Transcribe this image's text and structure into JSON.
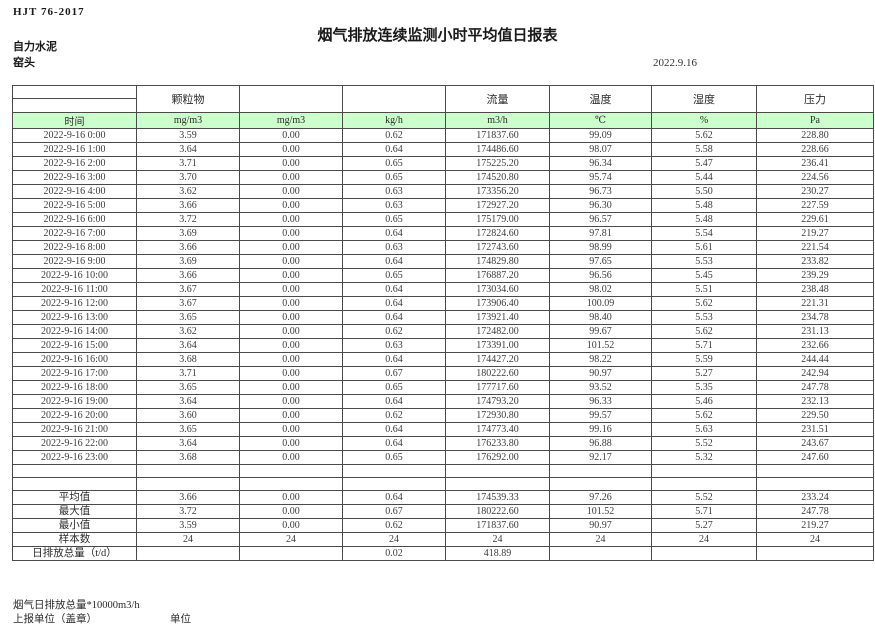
{
  "page": {
    "standard": "HJT  76-2017",
    "title": "烟气排放连续监测小时平均值日报表",
    "company": "自力水泥",
    "location": "窑头",
    "date": "2022.9.16"
  },
  "colors": {
    "unit_row_green": "#ccffcc",
    "border": "#4a4a4a"
  },
  "table": {
    "group_headers": [
      "",
      "颗粒物",
      "",
      "",
      "流量",
      "温度",
      "湿度",
      "压力"
    ],
    "unit_row": [
      "时间",
      "mg/m3",
      "mg/m3",
      "kg/h",
      "m3/h",
      "℃",
      "%",
      "Pa"
    ],
    "rows": [
      [
        "2022-9-16 0:00",
        "3.59",
        "0.00",
        "0.62",
        "171837.60",
        "99.09",
        "5.62",
        "228.80"
      ],
      [
        "2022-9-16 1:00",
        "3.64",
        "0.00",
        "0.64",
        "174486.60",
        "98.07",
        "5.58",
        "228.66"
      ],
      [
        "2022-9-16 2:00",
        "3.71",
        "0.00",
        "0.65",
        "175225.20",
        "96.34",
        "5.47",
        "236.41"
      ],
      [
        "2022-9-16 3:00",
        "3.70",
        "0.00",
        "0.65",
        "174520.80",
        "95.74",
        "5.44",
        "224.56"
      ],
      [
        "2022-9-16 4:00",
        "3.62",
        "0.00",
        "0.63",
        "173356.20",
        "96.73",
        "5.50",
        "230.27"
      ],
      [
        "2022-9-16 5:00",
        "3.66",
        "0.00",
        "0.63",
        "172927.20",
        "96.30",
        "5.48",
        "227.59"
      ],
      [
        "2022-9-16 6:00",
        "3.72",
        "0.00",
        "0.65",
        "175179.00",
        "96.57",
        "5.48",
        "229.61"
      ],
      [
        "2022-9-16 7:00",
        "3.69",
        "0.00",
        "0.64",
        "172824.60",
        "97.81",
        "5.54",
        "219.27"
      ],
      [
        "2022-9-16 8:00",
        "3.66",
        "0.00",
        "0.63",
        "172743.60",
        "98.99",
        "5.61",
        "221.54"
      ],
      [
        "2022-9-16 9:00",
        "3.69",
        "0.00",
        "0.64",
        "174829.80",
        "97.65",
        "5.53",
        "233.82"
      ],
      [
        "2022-9-16 10:00",
        "3.66",
        "0.00",
        "0.65",
        "176887.20",
        "96.56",
        "5.45",
        "239.29"
      ],
      [
        "2022-9-16 11:00",
        "3.67",
        "0.00",
        "0.64",
        "173034.60",
        "98.02",
        "5.51",
        "238.48"
      ],
      [
        "2022-9-16 12:00",
        "3.67",
        "0.00",
        "0.64",
        "173906.40",
        "100.09",
        "5.62",
        "221.31"
      ],
      [
        "2022-9-16 13:00",
        "3.65",
        "0.00",
        "0.64",
        "173921.40",
        "98.40",
        "5.53",
        "234.78"
      ],
      [
        "2022-9-16 14:00",
        "3.62",
        "0.00",
        "0.62",
        "172482.00",
        "99.67",
        "5.62",
        "231.13"
      ],
      [
        "2022-9-16 15:00",
        "3.64",
        "0.00",
        "0.63",
        "173391.00",
        "101.52",
        "5.71",
        "232.66"
      ],
      [
        "2022-9-16 16:00",
        "3.68",
        "0.00",
        "0.64",
        "174427.20",
        "98.22",
        "5.59",
        "244.44"
      ],
      [
        "2022-9-16 17:00",
        "3.71",
        "0.00",
        "0.67",
        "180222.60",
        "90.97",
        "5.27",
        "242.94"
      ],
      [
        "2022-9-16 18:00",
        "3.65",
        "0.00",
        "0.65",
        "177717.60",
        "93.52",
        "5.35",
        "247.78"
      ],
      [
        "2022-9-16 19:00",
        "3.64",
        "0.00",
        "0.64",
        "174793.20",
        "96.33",
        "5.46",
        "232.13"
      ],
      [
        "2022-9-16 20:00",
        "3.60",
        "0.00",
        "0.62",
        "172930.80",
        "99.57",
        "5.62",
        "229.50"
      ],
      [
        "2022-9-16 21:00",
        "3.65",
        "0.00",
        "0.64",
        "174773.40",
        "99.16",
        "5.63",
        "231.51"
      ],
      [
        "2022-9-16 22:00",
        "3.64",
        "0.00",
        "0.64",
        "176233.80",
        "96.88",
        "5.52",
        "243.67"
      ],
      [
        "2022-9-16 23:00",
        "3.68",
        "0.00",
        "0.65",
        "176292.00",
        "92.17",
        "5.32",
        "247.60"
      ]
    ],
    "gap_row_count": 2,
    "summary": [
      [
        "平均值",
        "3.66",
        "0.00",
        "0.64",
        "174539.33",
        "97.26",
        "5.52",
        "233.24"
      ],
      [
        "最大值",
        "3.72",
        "0.00",
        "0.67",
        "180222.60",
        "101.52",
        "5.71",
        "247.78"
      ],
      [
        "最小值",
        "3.59",
        "0.00",
        "0.62",
        "171837.60",
        "90.97",
        "5.27",
        "219.27"
      ],
      [
        "样本数",
        "24",
        "24",
        "24",
        "24",
        "24",
        "24",
        "24"
      ],
      [
        "日排放总量（t/d）",
        "",
        "",
        "0.02",
        "418.89",
        "",
        "",
        ""
      ]
    ]
  },
  "footer": {
    "note1": "烟气日排放总量*10000m3/h",
    "note2": "上报单位（盖章）",
    "unit_label": "单位"
  }
}
